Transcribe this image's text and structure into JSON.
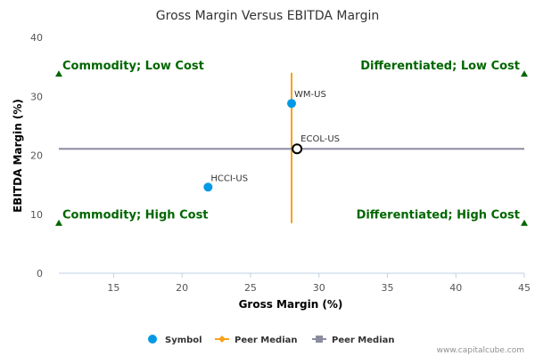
{
  "chart_data": {
    "type": "scatter",
    "title": "Gross Margin Versus EBITDA Margin",
    "xlabel": "Gross Margin (%)",
    "ylabel": "EBITDA Margin (%)",
    "xlim": [
      11,
      45
    ],
    "ylim": [
      0,
      40
    ],
    "xticks": [
      15,
      20,
      25,
      30,
      35,
      40,
      45
    ],
    "yticks": [
      0,
      10,
      20,
      30,
      40
    ],
    "grid": false,
    "legend_position": "bottom",
    "series": [
      {
        "name": "Symbol",
        "color": "#0099e6",
        "points": [
          {
            "label": "WM-US",
            "x": 28.0,
            "y": 28.8
          },
          {
            "label": "HCCI-US",
            "x": 21.9,
            "y": 14.6
          }
        ]
      },
      {
        "name": "Peer Median",
        "color": "#f7a21b",
        "line": {
          "x": [
            28.0,
            28.0
          ],
          "y": [
            8.5,
            34.0
          ]
        }
      },
      {
        "name": "Peer Median",
        "color": "#8c8ca0",
        "line": {
          "x": [
            11.0,
            45.0
          ],
          "y": [
            21.1,
            21.1
          ]
        }
      }
    ],
    "highlight": {
      "label": "ECOL-US",
      "x": 28.4,
      "y": 21.1
    },
    "quadrants": [
      {
        "label": "Commodity; Low Cost",
        "x": 11.0,
        "y": 33.8,
        "anchor": "start"
      },
      {
        "label": "Differentiated; Low Cost",
        "x": 45.0,
        "y": 33.8,
        "anchor": "end"
      },
      {
        "label": "Commodity; High Cost",
        "x": 11.0,
        "y": 8.5,
        "anchor": "start"
      },
      {
        "label": "Differentiated; High Cost",
        "x": 45.0,
        "y": 8.5,
        "anchor": "end"
      }
    ],
    "quadrant_color": "#006600"
  },
  "legend": [
    {
      "label": "Symbol",
      "marker": "circle",
      "color": "#0099e6"
    },
    {
      "label": "Peer Median",
      "marker": "diamond",
      "color": "#f7a21b"
    },
    {
      "label": "Peer Median",
      "marker": "square",
      "color": "#8c8ca0"
    }
  ],
  "credit": "www.capitalcube.com"
}
